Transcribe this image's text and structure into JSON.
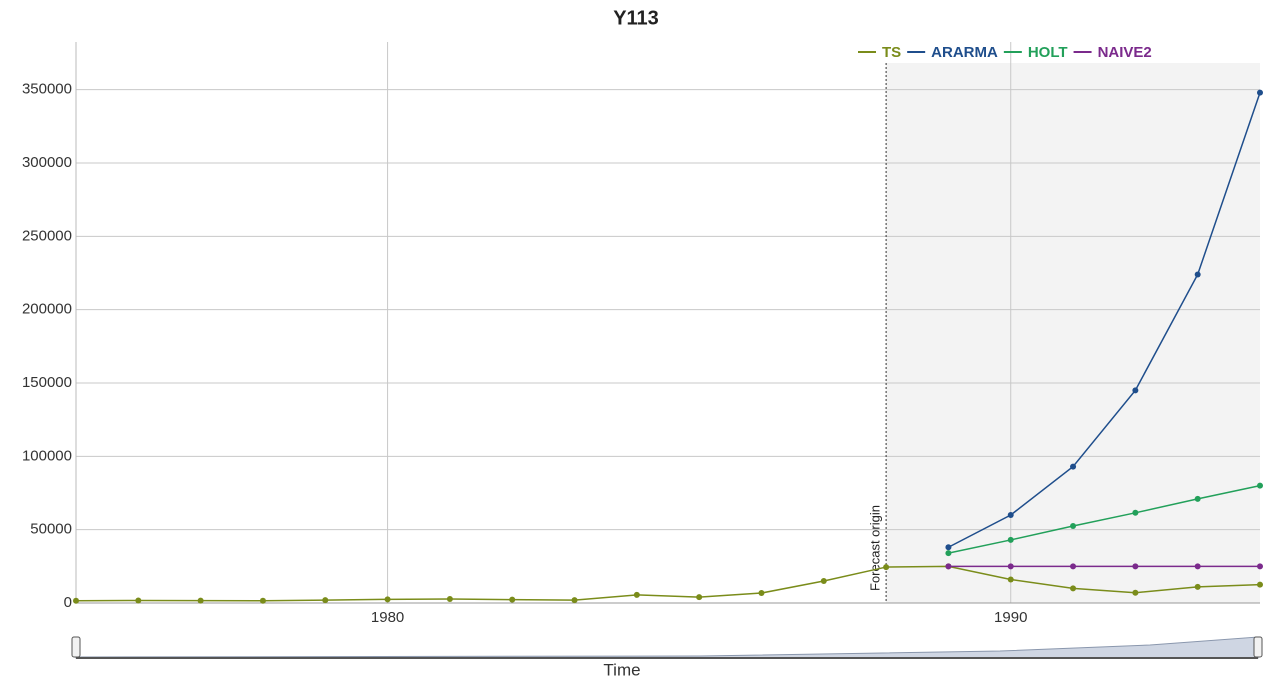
{
  "chart_data": {
    "type": "line",
    "title": "Y113",
    "x_label": "Time",
    "annotation": "Forecast origin",
    "forecast_origin": 1988,
    "x": [
      1975,
      1976,
      1977,
      1978,
      1979,
      1980,
      1981,
      1982,
      1983,
      1984,
      1985,
      1986,
      1987,
      1988,
      1989,
      1990,
      1991,
      1992,
      1993,
      1994
    ],
    "series": [
      {
        "name": "TS",
        "color": "#7a8c1a",
        "values": [
          1500,
          1700,
          1600,
          1500,
          2000,
          2500,
          2700,
          2300,
          2000,
          5500,
          4000,
          6800,
          15000,
          24500,
          25000,
          16000,
          10000,
          7000,
          11000,
          12500
        ]
      },
      {
        "name": "ARARMA",
        "color": "#1f4e8c",
        "values": [
          null,
          null,
          null,
          null,
          null,
          null,
          null,
          null,
          null,
          null,
          null,
          null,
          null,
          null,
          38000,
          60000,
          93000,
          145000,
          224000,
          348000
        ]
      },
      {
        "name": "HOLT",
        "color": "#22a05a",
        "values": [
          null,
          null,
          null,
          null,
          null,
          null,
          null,
          null,
          null,
          null,
          null,
          null,
          null,
          null,
          34000,
          43000,
          52500,
          61500,
          71000,
          80000
        ]
      },
      {
        "name": "NAIVE2",
        "color": "#7b2a8c",
        "values": [
          null,
          null,
          null,
          null,
          null,
          null,
          null,
          null,
          null,
          null,
          null,
          null,
          null,
          null,
          25000,
          25000,
          25000,
          25000,
          25000,
          25000
        ]
      }
    ],
    "xlim": [
      1975,
      1994
    ],
    "xticks": [
      1980,
      1990
    ],
    "ylim": [
      0,
      382500
    ],
    "yticks": [
      0,
      50000,
      100000,
      150000,
      200000,
      250000,
      300000,
      350000
    ],
    "grid": true
  }
}
